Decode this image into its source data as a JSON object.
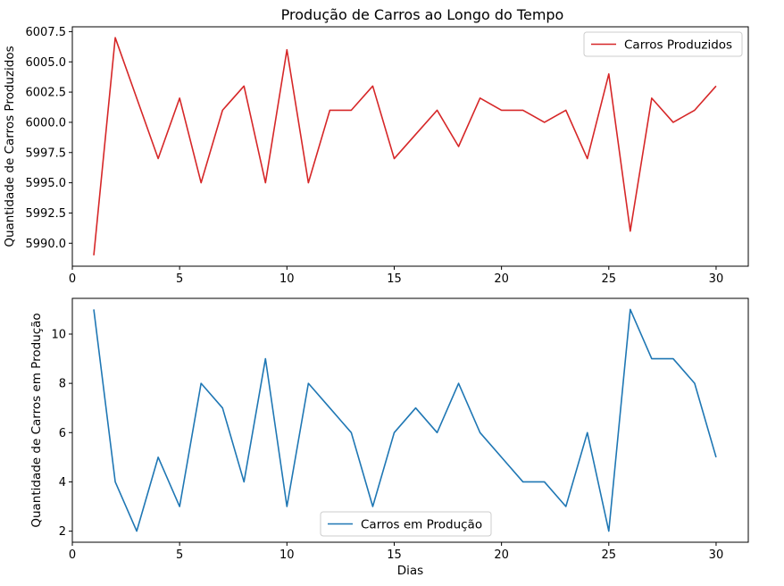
{
  "figure": {
    "title": "Produção de Carros ao Longo do Tempo"
  },
  "chart_data": [
    {
      "type": "line",
      "title": "Produção de Carros ao Longo do Tempo",
      "xlabel": "",
      "ylabel": "Quantidade de Carros Produzidos",
      "xlim": [
        0,
        31.5
      ],
      "ylim": [
        5988.1,
        6007.9
      ],
      "xticks": [
        0,
        5,
        10,
        15,
        20,
        25,
        30
      ],
      "yticks": [
        5990.0,
        5992.5,
        5995.0,
        5997.5,
        6000.0,
        6002.5,
        6005.0,
        6007.5
      ],
      "ytick_labels": [
        "5990.0",
        "5992.5",
        "5995.0",
        "5997.5",
        "6000.0",
        "6002.5",
        "6005.0",
        "6007.5"
      ],
      "grid": false,
      "legend_position": "upper right",
      "x": [
        1,
        2,
        3,
        4,
        5,
        6,
        7,
        8,
        9,
        10,
        11,
        12,
        13,
        14,
        15,
        16,
        17,
        18,
        19,
        20,
        21,
        22,
        23,
        24,
        25,
        26,
        27,
        28,
        29,
        30
      ],
      "series": [
        {
          "name": "Carros Produzidos",
          "color": "#d62728",
          "values": [
            5989,
            6007,
            6002,
            5997,
            6002,
            5995,
            6001,
            6003,
            5995,
            6006,
            5995,
            6001,
            6001,
            6003,
            5997,
            5999,
            6001,
            5998,
            6002,
            6001,
            6001,
            6000,
            6001,
            5997,
            6004,
            5991,
            6002,
            6000,
            6001,
            6003
          ]
        }
      ]
    },
    {
      "type": "line",
      "title": "",
      "xlabel": "Dias",
      "ylabel": "Quantidade de Carros em Produção",
      "xlim": [
        0,
        31.5
      ],
      "ylim": [
        1.55,
        11.45
      ],
      "xticks": [
        0,
        5,
        10,
        15,
        20,
        25,
        30
      ],
      "yticks": [
        2,
        4,
        6,
        8,
        10
      ],
      "ytick_labels": [
        "2",
        "4",
        "6",
        "8",
        "10"
      ],
      "grid": false,
      "legend_position": "lower center",
      "x": [
        1,
        2,
        3,
        4,
        5,
        6,
        7,
        8,
        9,
        10,
        11,
        12,
        13,
        14,
        15,
        16,
        17,
        18,
        19,
        20,
        21,
        22,
        23,
        24,
        25,
        26,
        27,
        28,
        29,
        30
      ],
      "series": [
        {
          "name": "Carros em Produção",
          "color": "#1f77b4",
          "values": [
            11,
            4,
            2,
            5,
            3,
            8,
            7,
            4,
            9,
            3,
            8,
            7,
            6,
            3,
            6,
            7,
            6,
            8,
            6,
            5,
            4,
            4,
            3,
            6,
            2,
            11,
            9,
            9,
            8,
            5
          ]
        }
      ]
    }
  ]
}
